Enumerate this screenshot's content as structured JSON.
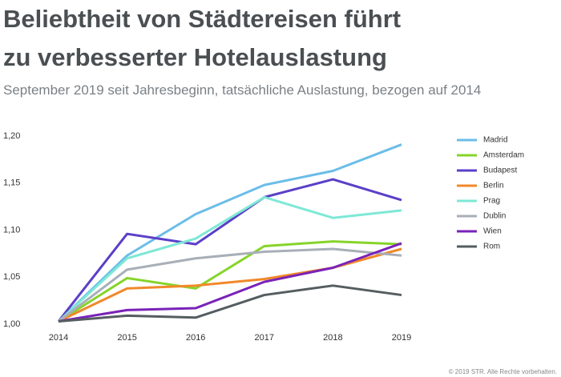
{
  "chart_data": {
    "type": "line",
    "title": [
      "Beliebtheit von Städtereisen führt",
      "zu verbesserter Hotelauslastung"
    ],
    "subtitle": "September 2019 seit Jahresbeginn, tatsächliche Auslastung, bezogen auf 2014",
    "footnote": "© 2019 STR. Alle Rechte vorbehalten.",
    "categories": [
      "2014",
      "2015",
      "2016",
      "2017",
      "2018",
      "2019"
    ],
    "ylim": [
      1.0,
      1.2
    ],
    "yticks": [
      {
        "value": 1.0,
        "label": "1,00"
      },
      {
        "value": 1.05,
        "label": "1,05"
      },
      {
        "value": 1.1,
        "label": "1,10"
      },
      {
        "value": 1.15,
        "label": "1,15"
      },
      {
        "value": 1.2,
        "label": "1,20"
      }
    ],
    "series": [
      {
        "name": "Madrid",
        "color": "#6bbde8",
        "values": [
          1.003,
          1.073,
          1.117,
          1.148,
          1.163,
          1.191
        ]
      },
      {
        "name": "Amsterdam",
        "color": "#86d42a",
        "values": [
          1.003,
          1.049,
          1.038,
          1.083,
          1.088,
          1.085
        ]
      },
      {
        "name": "Budapest",
        "color": "#5b3fc8",
        "values": [
          1.003,
          1.096,
          1.085,
          1.135,
          1.154,
          1.132
        ]
      },
      {
        "name": "Berlin",
        "color": "#f0892a",
        "values": [
          1.003,
          1.038,
          1.041,
          1.048,
          1.06,
          1.08
        ]
      },
      {
        "name": "Prag",
        "color": "#7ee8d6",
        "values": [
          1.003,
          1.07,
          1.091,
          1.135,
          1.113,
          1.121
        ]
      },
      {
        "name": "Dublin",
        "color": "#a8afb8",
        "values": [
          1.003,
          1.058,
          1.07,
          1.077,
          1.08,
          1.073
        ]
      },
      {
        "name": "Wien",
        "color": "#7a22b8",
        "values": [
          1.003,
          1.015,
          1.017,
          1.045,
          1.06,
          1.086
        ]
      },
      {
        "name": "Rom",
        "color": "#555d60",
        "values": [
          1.003,
          1.009,
          1.007,
          1.031,
          1.041,
          1.031
        ]
      }
    ]
  }
}
